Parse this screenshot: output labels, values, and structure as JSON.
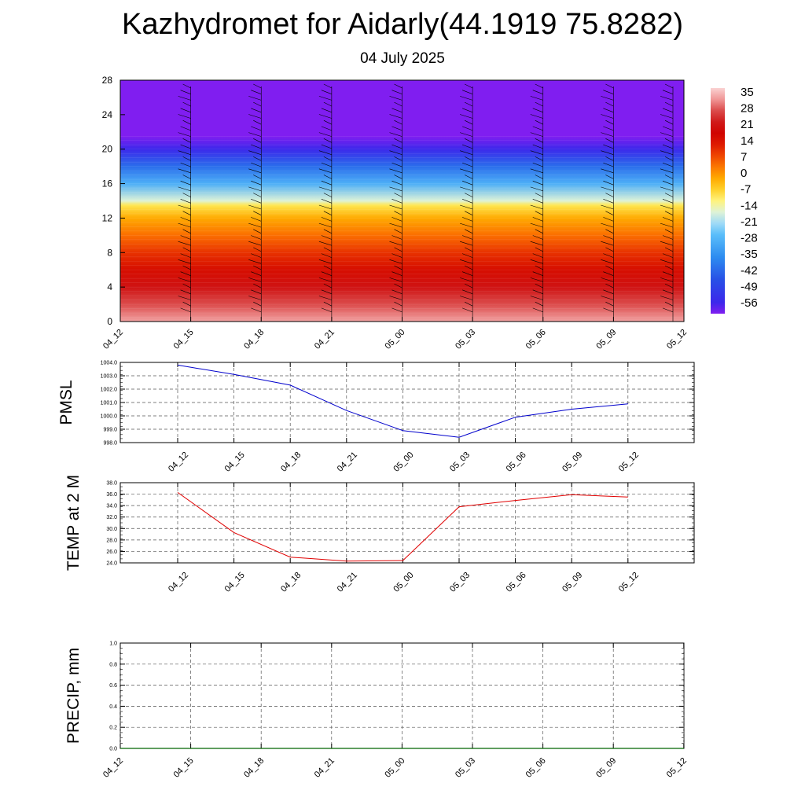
{
  "title": "Kazhydromet for Aidarly(44.1919 75.8282)",
  "subtitle": "04 July 2025",
  "colors": {
    "pmsl_line": "#0000cc",
    "temp_line": "#e00000",
    "precip_line": "#006400"
  },
  "chart_data": [
    {
      "type": "heatmap",
      "name": "vertical temperature and wind profile",
      "x_ticks": [
        "04_12",
        "04_15",
        "04_18",
        "04_21",
        "05_00",
        "05_03",
        "05_06",
        "05_09",
        "05_12"
      ],
      "y_ticks": [
        0,
        4,
        8,
        12,
        16,
        20,
        24,
        28
      ],
      "ylim": [
        0,
        28
      ],
      "colorbar_labels": [
        "35",
        "28",
        "21",
        "14",
        "7",
        "0",
        "-7",
        "-14",
        "-21",
        "-28",
        "-35",
        "-42",
        "-49",
        "-56"
      ],
      "colorbar_range": [
        -60,
        40
      ],
      "temperature_profile": [
        {
          "h": 0,
          "t": 36
        },
        {
          "h": 2,
          "t": 30
        },
        {
          "h": 4,
          "t": 24
        },
        {
          "h": 6,
          "t": 18
        },
        {
          "h": 8,
          "t": 12
        },
        {
          "h": 10,
          "t": 6
        },
        {
          "h": 12,
          "t": 0
        },
        {
          "h": 13.5,
          "t": -8
        },
        {
          "h": 14,
          "t": -15
        },
        {
          "h": 16,
          "t": -28
        },
        {
          "h": 18,
          "t": -40
        },
        {
          "h": 20,
          "t": -55
        },
        {
          "h": 21.5,
          "t": -60
        },
        {
          "h": 28,
          "t": -60
        }
      ],
      "wind_barb_columns": [
        "04_15",
        "04_18",
        "04_21",
        "05_00",
        "05_03",
        "05_06",
        "05_09",
        "05_12"
      ],
      "grid": false
    },
    {
      "type": "line",
      "ylabel": "PMSL",
      "x": [
        "04_12",
        "04_15",
        "04_18",
        "04_21",
        "05_00",
        "05_03",
        "05_06",
        "05_09",
        "05_12"
      ],
      "values": [
        1003.8,
        1003.1,
        1002.3,
        1000.4,
        998.9,
        998.4,
        999.9,
        1000.5,
        1000.9
      ],
      "ylim": [
        998.0,
        1004.0
      ],
      "y_ticks": [
        "998.0",
        "999.0",
        "1000.0",
        "1001.0",
        "1002.0",
        "1003.0",
        "1004.0"
      ],
      "grid": true
    },
    {
      "type": "line",
      "ylabel": "TEMP at 2 M",
      "x": [
        "04_12",
        "04_15",
        "04_18",
        "04_21",
        "05_00",
        "05_03",
        "05_06",
        "05_09",
        "05_12"
      ],
      "values": [
        36.3,
        29.3,
        25.0,
        24.3,
        24.4,
        33.8,
        34.9,
        35.9,
        35.5
      ],
      "ylim": [
        24.0,
        38.0
      ],
      "y_ticks": [
        "24.0",
        "26.0",
        "28.0",
        "30.0",
        "32.0",
        "34.0",
        "36.0",
        "38.0"
      ],
      "grid": true
    },
    {
      "type": "line",
      "ylabel": "PRECIP, mm",
      "x": [
        "04_12",
        "04_15",
        "04_18",
        "04_21",
        "05_00",
        "05_03",
        "05_06",
        "05_09",
        "05_12"
      ],
      "values": [
        0,
        0,
        0,
        0,
        0,
        0,
        0,
        0,
        0
      ],
      "ylim": [
        0.0,
        1.0
      ],
      "y_ticks": [
        "0.0",
        "0.2",
        "0.4",
        "0.6",
        "0.8",
        "1.0"
      ],
      "grid": true
    }
  ]
}
